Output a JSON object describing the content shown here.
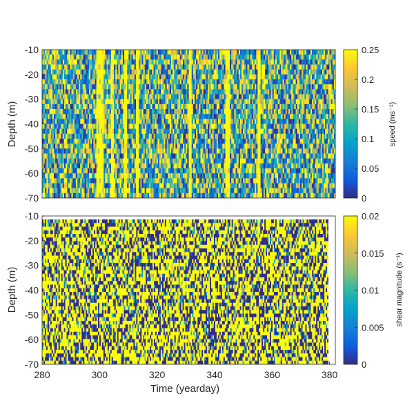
{
  "chart_data": [
    {
      "type": "heatmap",
      "panel": "top",
      "xlim": [
        280,
        382
      ],
      "ylim": [
        -70,
        -10
      ],
      "yticks": [
        "-10",
        "-20",
        "-30",
        "-40",
        "-50",
        "-60",
        "-70"
      ],
      "ylabel": "Depth (m)",
      "colorbar": {
        "label": "speed (ms⁻¹)",
        "range": [
          0,
          0.25
        ],
        "ticks": [
          "0.25",
          "0.2",
          "0.15",
          "0.1",
          "0.05",
          "0"
        ]
      },
      "high_value_bands_yearday": [
        [
          299,
          301.5
        ],
        [
          304,
          305
        ],
        [
          308.5,
          309.5
        ],
        [
          312.5,
          313.5
        ],
        [
          331,
          331.8
        ],
        [
          343.5,
          345.5
        ],
        [
          355,
          356
        ]
      ],
      "colormap": "parula"
    },
    {
      "type": "heatmap",
      "panel": "bottom",
      "xlim": [
        280,
        382
      ],
      "ylim": [
        -70,
        -10
      ],
      "xticks": [
        "280",
        "300",
        "320",
        "340",
        "360",
        "380"
      ],
      "yticks": [
        "-10",
        "-20",
        "-30",
        "-40",
        "-50",
        "-60",
        "-70"
      ],
      "xlabel": "Time (yearday)",
      "ylabel": "Depth (m)",
      "colorbar": {
        "label": "shear magnitude (s⁻¹)",
        "range": [
          0,
          0.02
        ],
        "ticks": [
          "0.02",
          "0.015",
          "0.01",
          "0.005",
          "0"
        ]
      },
      "colormap": "parula"
    }
  ]
}
